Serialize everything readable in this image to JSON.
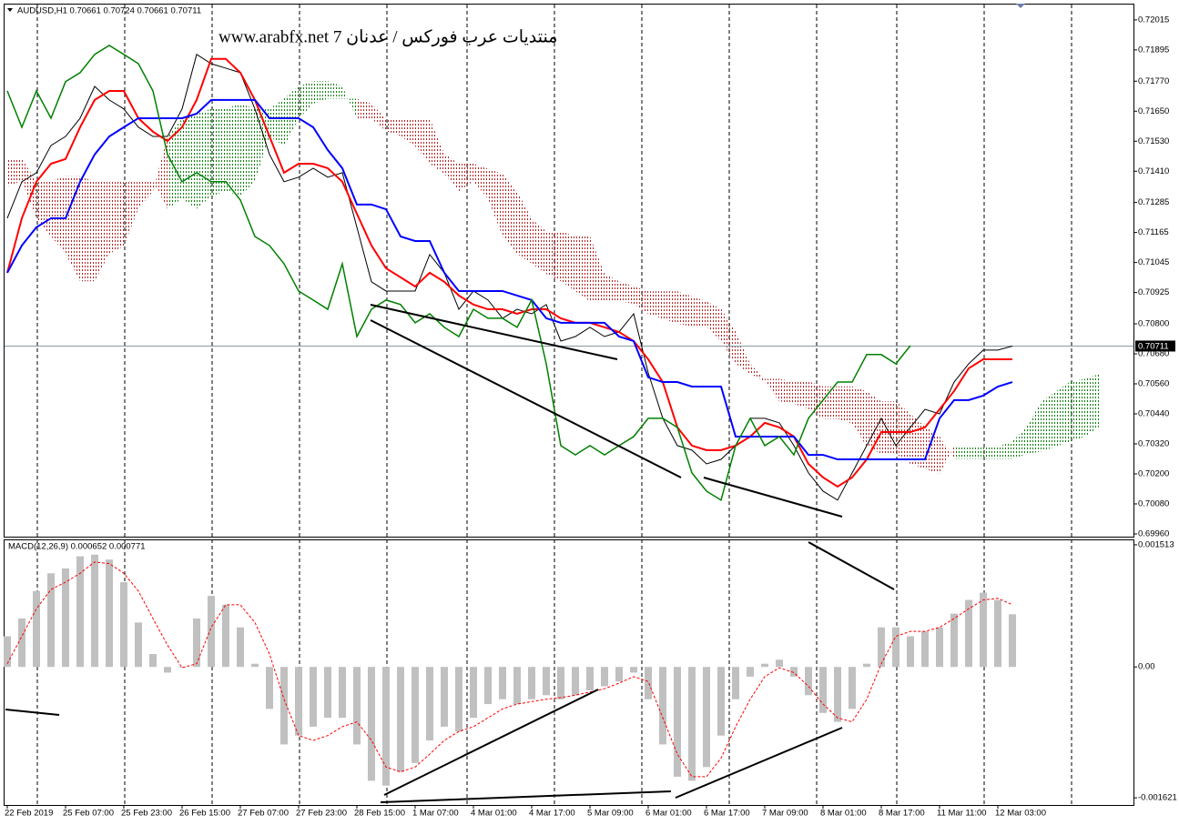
{
  "chart_data": [
    {
      "type": "line",
      "title": "AUDUSD,H1  0.70661 0.70724 0.70661 0.70711",
      "watermark": "www.arabfx.net 7 منتديات عرب فوركس / عدنان",
      "categories": [
        "22 Feb 2019",
        null,
        null,
        null,
        "25 Feb 07:00",
        null,
        null,
        null,
        "25 Feb 23:00",
        null,
        null,
        null,
        "26 Feb 15:00",
        null,
        null,
        null,
        "27 Feb 07:00",
        null,
        null,
        null,
        "27 Feb 23:00",
        null,
        null,
        null,
        "28 Feb 15:00",
        null,
        null,
        null,
        "1 Mar 07:00",
        null,
        null,
        null,
        "4 Mar 01:00",
        null,
        null,
        null,
        "4 Mar 17:00",
        null,
        null,
        null,
        "5 Mar 09:00",
        null,
        null,
        null,
        "6 Mar 01:00",
        null,
        null,
        null,
        "6 Mar 17:00",
        null,
        null,
        null,
        "7 Mar 09:00",
        null,
        null,
        null,
        "8 Mar 01:00",
        null,
        null,
        null,
        "8 Mar 17:00",
        null,
        null,
        null,
        "11 Mar 11:00",
        null,
        null,
        null,
        "12 Mar 03:00",
        null,
        null,
        null,
        null,
        null,
        null,
        null
      ],
      "ylim": [
        0.69949,
        0.7208
      ],
      "yticks": [
        0.72015,
        0.71895,
        {
          "value": 0.7177,
          "label": "0.71770"
        },
        {
          "value": 0.7165,
          "label": "0.71650"
        },
        {
          "value": 0.7153,
          "label": "0.71530"
        },
        {
          "value": 0.7141,
          "label": "0.71410"
        },
        0.71285,
        0.71165,
        0.71045,
        0.70925,
        {
          "value": 0.708,
          "label": "0.70800"
        },
        {
          "value": 0.7068,
          "label": "0.70680"
        },
        {
          "value": 0.7056,
          "label": "0.70560"
        },
        {
          "value": 0.7044,
          "label": "0.70440"
        },
        {
          "value": 0.7032,
          "label": "0.70320"
        },
        {
          "value": 0.702,
          "label": "0.70200"
        },
        {
          "value": 0.7008,
          "label": "0.70080"
        },
        {
          "value": 0.6996,
          "label": "0.69960"
        }
      ],
      "price_line": 0.70711,
      "cloud": {
        "span_a": {
          "color": "#008000",
          "values": [
            0.7135,
            0.7137,
            0.7122,
            0.7115,
            0.7108,
            0.7097,
            0.7097,
            0.7108,
            0.7111,
            0.7126,
            0.7133,
            0.7155,
            0.7162,
            0.7164,
            0.7166,
            0.7166,
            0.7168,
            0.7166,
            0.7166,
            0.717,
            0.7175,
            0.7177,
            0.7177,
            0.7175,
            0.7162,
            0.7162,
            0.7157,
            0.7155,
            0.7151,
            0.7144,
            0.714,
            0.7133,
            0.7137,
            0.713,
            0.7115,
            0.7108,
            0.7104,
            0.71,
            0.7097,
            0.7093,
            0.7089,
            0.7089,
            0.7089,
            0.7088,
            0.7084,
            0.7082,
            0.708,
            0.7079,
            0.7079,
            0.7073,
            0.7064,
            0.706,
            0.7057,
            0.7049,
            0.7048,
            0.7046,
            0.7042,
            0.7042,
            0.704,
            0.7031,
            0.7028,
            0.7028,
            0.7024,
            0.7022,
            0.702,
            0.7031,
            0.7031,
            0.7031,
            0.7031,
            0.7033,
            0.7039,
            0.7049,
            0.7053,
            0.7057,
            0.7058,
            0.706
          ]
        },
        "span_b": {
          "color": "#b22222",
          "values": [
            0.7146,
            0.7146,
            0.7137,
            0.7137,
            0.7139,
            0.7139,
            0.7137,
            0.7137,
            0.7137,
            0.7137,
            0.7137,
            0.7126,
            0.713,
            0.7126,
            0.7131,
            0.7133,
            0.7131,
            0.7137,
            0.7155,
            0.7151,
            0.7162,
            0.7168,
            0.717,
            0.717,
            0.717,
            0.7168,
            0.7162,
            0.7162,
            0.7162,
            0.7162,
            0.7148,
            0.7144,
            0.7144,
            0.7142,
            0.714,
            0.7133,
            0.7122,
            0.7117,
            0.7117,
            0.7115,
            0.7115,
            0.71,
            0.7097,
            0.7095,
            0.7093,
            0.7093,
            0.7093,
            0.7091,
            0.7089,
            0.7086,
            0.7077,
            0.7064,
            0.7058,
            0.7058,
            0.7057,
            0.7057,
            0.7055,
            0.7055,
            0.7055,
            0.7053,
            0.7049,
            0.7049,
            0.7044,
            0.7039,
            0.7035,
            0.7026,
            0.7026,
            0.7026,
            0.7026,
            0.7026,
            0.7028,
            0.7029,
            0.7031,
            0.7033,
            0.7035,
            0.7039
          ]
        }
      },
      "series": [
        {
          "color": "#000000",
          "values": [
            0.71222,
            0.71368,
            0.71404,
            0.71513,
            0.71549,
            0.71622,
            0.71749,
            0.71695,
            0.71659,
            0.71586,
            0.71549,
            0.71549,
            0.71659,
            0.71877,
            0.7184,
            0.71822,
            0.71804,
            0.71659,
            0.71477,
            0.71368,
            0.71386,
            0.71422,
            0.71386,
            0.71404,
            0.71186,
            0.70968,
            0.70931,
            0.70931,
            0.70931,
            0.71077,
            0.71004,
            0.70858,
            0.70931,
            0.70895,
            0.70822,
            0.70858,
            0.7084,
            0.70877,
            0.70731,
            0.70749,
            0.70786,
            0.70749,
            0.70768,
            0.7084,
            0.70604,
            0.70422,
            0.70313,
            0.70295,
            0.7024,
            0.70258,
            0.70313,
            0.70422,
            0.70422,
            0.70404,
            0.70313,
            0.70204,
            0.70131,
            0.70095,
            0.70204,
            0.70313,
            0.70422,
            0.70313,
            0.70386,
            0.70458,
            0.7044,
            0.70567,
            0.7064,
            0.70695,
            0.70695,
            0.70711,
            null,
            null,
            null,
            null,
            null,
            null
          ]
        },
        {
          "color": "#ff0000",
          "values": [
            0.71004,
            0.71222,
            0.71368,
            0.7144,
            0.71459,
            0.71586,
            0.71695,
            0.71731,
            0.71731,
            0.71622,
            0.71568,
            0.71531,
            0.71586,
            0.71695,
            0.71859,
            0.71859,
            0.71804,
            0.71695,
            0.71549,
            0.71404,
            0.7144,
            0.7144,
            0.71422,
            0.71368,
            0.7124,
            0.71113,
            0.71022,
            0.70986,
            0.70949,
            0.71004,
            0.70968,
            0.70913,
            0.70877,
            0.70858,
            0.70858,
            0.7084,
            0.70858,
            0.70858,
            0.70822,
            0.70804,
            0.70804,
            0.70786,
            0.70767,
            0.70731,
            0.70658,
            0.70567,
            0.70386,
            0.70313,
            0.70295,
            0.70295,
            0.70313,
            0.70349,
            0.70404,
            0.70386,
            0.70349,
            0.7024,
            0.70186,
            0.70149,
            0.70186,
            0.70258,
            0.70367,
            0.70367,
            0.70367,
            0.70386,
            0.70458,
            0.70531,
            0.70622,
            0.70658,
            0.70658,
            0.70658,
            null,
            null,
            null,
            null,
            null,
            null
          ]
        },
        {
          "color": "#0000ff",
          "values": [
            0.71004,
            0.71113,
            0.71186,
            0.71222,
            0.71222,
            0.71368,
            0.71477,
            0.71549,
            0.71586,
            0.71622,
            0.71622,
            0.71622,
            0.71622,
            0.7164,
            0.71695,
            0.71695,
            0.71695,
            0.71695,
            0.71622,
            0.71622,
            0.71622,
            0.71586,
            0.71495,
            0.71422,
            0.71277,
            0.71277,
            0.71258,
            0.71149,
            0.71131,
            0.71131,
            0.71004,
            0.70931,
            0.70931,
            0.70931,
            0.70931,
            0.70913,
            0.70895,
            0.70822,
            0.70804,
            0.70804,
            0.70804,
            0.70804,
            0.70749,
            0.70731,
            0.70586,
            0.70567,
            0.70567,
            0.70549,
            0.70549,
            0.70549,
            0.70349,
            0.70349,
            0.70349,
            0.70349,
            0.70349,
            0.70276,
            0.70276,
            0.70258,
            0.70258,
            0.70258,
            0.70258,
            0.70258,
            0.70258,
            0.70258,
            0.70422,
            0.70495,
            0.70495,
            0.70513,
            0.70549,
            0.70567,
            null,
            null,
            null,
            null,
            null,
            null
          ]
        },
        {
          "color": "#008000",
          "values": [
            0.71731,
            0.71586,
            0.71731,
            0.71622,
            0.71768,
            0.71804,
            0.71877,
            0.71913,
            0.71877,
            0.7184,
            0.71731,
            0.71477,
            0.71368,
            0.71404,
            0.71368,
            0.71368,
            0.71295,
            0.71149,
            0.71113,
            0.7104,
            0.70931,
            0.70895,
            0.70858,
            0.7104,
            0.70749,
            0.70858,
            0.70895,
            0.70877,
            0.70804,
            0.7084,
            0.70786,
            0.70749,
            0.70858,
            0.70822,
            0.70822,
            0.70786,
            0.70895,
            0.7064,
            0.70313,
            0.70276,
            0.70313,
            0.70276,
            0.70313,
            0.70349,
            0.70422,
            0.70422,
            0.70386,
            0.70204,
            0.70131,
            0.70095,
            0.70313,
            0.70422,
            0.70313,
            0.70349,
            0.70276,
            0.70422,
            0.70495,
            0.70567,
            0.70567,
            0.70677,
            0.70677,
            0.7064,
            0.70713,
            null,
            null,
            null,
            null,
            null,
            null,
            null,
            null,
            null,
            null,
            null,
            null,
            null
          ]
        }
      ]
    },
    {
      "type": "bar",
      "title": "MACD(12,26,9) 0.000652 0.000771",
      "ylim": [
        -0.00171,
        0.00158
      ],
      "yticks": [
        0.001513,
        {
          "value": 0,
          "label": "0.00"
        },
        -0.001621
      ],
      "series": [
        {
          "color": "#c0c0c0",
          "values": [
            0.00038,
            0.0006,
            0.00094,
            0.00116,
            0.00122,
            0.00137,
            0.00139,
            0.00133,
            0.00105,
            0.00055,
            0.00016,
            -7e-05,
            -1e-05,
            0.0006,
            0.00088,
            0.00077,
            0.00049,
            4e-05,
            -0.00052,
            -0.00096,
            -0.00085,
            -0.00074,
            -0.00063,
            -0.00063,
            -0.00096,
            -0.00141,
            -0.00147,
            -0.0013,
            -0.00119,
            -0.00091,
            -0.00074,
            -0.0008,
            -0.00063,
            -0.00046,
            -0.0004,
            -0.00046,
            -0.0004,
            -0.00035,
            -0.0004,
            -0.00035,
            -0.00029,
            -0.00024,
            -0.00018,
            -7e-05,
            -0.0004,
            -0.00096,
            -0.00136,
            -0.00141,
            -0.00124,
            -0.00085,
            -0.0004,
            -0.00012,
            4e-05,
            9e-05,
            -0.00012,
            -0.00035,
            -0.00057,
            -0.00068,
            -0.00052,
            4e-05,
            0.00049,
            0.00049,
            0.00038,
            0.00044,
            0.00049,
            0.00066,
            0.00083,
            0.00092,
            0.00083,
            0.000652,
            null,
            null,
            null,
            null,
            null,
            null
          ]
        },
        {
          "type": "line",
          "color": "#ff0000",
          "dashed": true,
          "values": [
            4e-05,
            0.00038,
            0.00072,
            0.00096,
            0.00105,
            0.00116,
            0.0013,
            0.00128,
            0.00116,
            0.00094,
            0.0006,
            0.00027,
            -1e-05,
            4e-05,
            0.00049,
            0.00077,
            0.00077,
            0.00055,
            0.00016,
            -0.0004,
            -0.00085,
            -0.00091,
            -0.00085,
            -0.00074,
            -0.00068,
            -0.00091,
            -0.00124,
            -0.0013,
            -0.00124,
            -0.00108,
            -0.00091,
            -0.0008,
            -0.00074,
            -0.00063,
            -0.00052,
            -0.00046,
            -0.00043,
            -0.0004,
            -0.00038,
            -0.00035,
            -0.00031,
            -0.00027,
            -0.0002,
            -0.00012,
            -0.00018,
            -0.00063,
            -0.00108,
            -0.00136,
            -0.00136,
            -0.00113,
            -0.00074,
            -0.0004,
            -0.00012,
            -1e-05,
            -7e-05,
            -0.00024,
            -0.00046,
            -0.00063,
            -0.00068,
            -0.0004,
            4e-05,
            0.00038,
            0.00044,
            0.00044,
            0.00049,
            0.0006,
            0.00072,
            0.00083,
            0.00085,
            0.000771,
            null,
            null,
            null,
            null,
            null,
            null
          ]
        }
      ]
    }
  ]
}
